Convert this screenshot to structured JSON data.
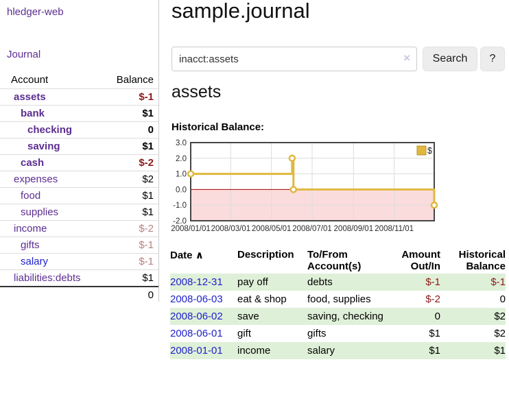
{
  "app": {
    "title": "hledger-web",
    "nav_journal": "Journal"
  },
  "colors": {
    "link_purple": "#5c2d91",
    "link_blue": "#2122cc",
    "negative_red": "#8b1a1a",
    "negative_faded": "#b98080",
    "stripe_green": "#dff0d8",
    "chart_line_gold": "#e0b83e"
  },
  "sidebar": {
    "columns": [
      "Account",
      "Balance"
    ],
    "accounts": [
      {
        "name": "assets",
        "depth": 0,
        "balance": "$-1",
        "bold": true,
        "negative": true
      },
      {
        "name": "bank",
        "depth": 1,
        "balance": "$1",
        "bold": true
      },
      {
        "name": "checking",
        "depth": 2,
        "balance": "0",
        "bold": true
      },
      {
        "name": "saving",
        "depth": 2,
        "balance": "$1",
        "bold": true
      },
      {
        "name": "cash",
        "depth": 1,
        "balance": "$-2",
        "bold": true,
        "negative": true
      },
      {
        "name": "expenses",
        "depth": 0,
        "balance": "$2"
      },
      {
        "name": "food",
        "depth": 1,
        "balance": "$1"
      },
      {
        "name": "supplies",
        "depth": 1,
        "balance": "$1"
      },
      {
        "name": "income",
        "depth": 0,
        "balance": "$-2",
        "negative": true,
        "faded": true
      },
      {
        "name": "gifts",
        "depth": 1,
        "balance": "$-1",
        "negative": true,
        "faded": true
      },
      {
        "name": "salary",
        "depth": 1,
        "balance": "$-1",
        "negative": true,
        "faded": true,
        "blue": true
      },
      {
        "name": "liabilities:debts",
        "depth": 0,
        "balance": "$1"
      }
    ],
    "total": "0"
  },
  "header": {
    "title": "sample.journal"
  },
  "search": {
    "value": "inacct:assets",
    "clear_icon": "×",
    "button": "Search",
    "help_button": "?"
  },
  "main": {
    "account_title": "assets",
    "chart_label": "Historical Balance:"
  },
  "chart_data": {
    "type": "line",
    "step": true,
    "title": "Historical Balance",
    "xlabel": "",
    "ylabel": "",
    "xlim": [
      "2008-01-01",
      "2008-12-31"
    ],
    "ylim": [
      -2.0,
      3.0
    ],
    "y_ticks": [
      3.0,
      2.0,
      1.0,
      0.0,
      -1.0,
      -2.0
    ],
    "x_ticks": [
      "2008/01/01",
      "2008/03/01",
      "2008/05/01",
      "2008/07/01",
      "2008/09/01",
      "2008/11/01"
    ],
    "series": [
      {
        "name": "$",
        "color": "#e0b83e",
        "points": [
          [
            "2008-01-01",
            1
          ],
          [
            "2008-06-01",
            2
          ],
          [
            "2008-06-03",
            0
          ],
          [
            "2008-12-31",
            -1
          ]
        ]
      }
    ],
    "legend": "$",
    "legend_position": "top-right",
    "grid": true,
    "negative_region_color": "#fbdcdc",
    "zero_line_color": "#a40000"
  },
  "register": {
    "columns": [
      "Date",
      "Description",
      "To/From Account(s)",
      "Amount Out/In",
      "Historical Balance"
    ],
    "sort_indicator": "∧",
    "rows": [
      {
        "date": "2008-12-31",
        "description": "pay off",
        "accounts": "debts",
        "amount": "$-1",
        "balance": "$-1"
      },
      {
        "date": "2008-06-03",
        "description": "eat & shop",
        "accounts": "food, supplies",
        "amount": "$-2",
        "balance": "0"
      },
      {
        "date": "2008-06-02",
        "description": "save",
        "accounts": "saving, checking",
        "amount": "0",
        "balance": "$2"
      },
      {
        "date": "2008-06-01",
        "description": "gift",
        "accounts": "gifts",
        "amount": "$1",
        "balance": "$2"
      },
      {
        "date": "2008-01-01",
        "description": "income",
        "accounts": "salary",
        "amount": "$1",
        "balance": "$1"
      }
    ]
  }
}
